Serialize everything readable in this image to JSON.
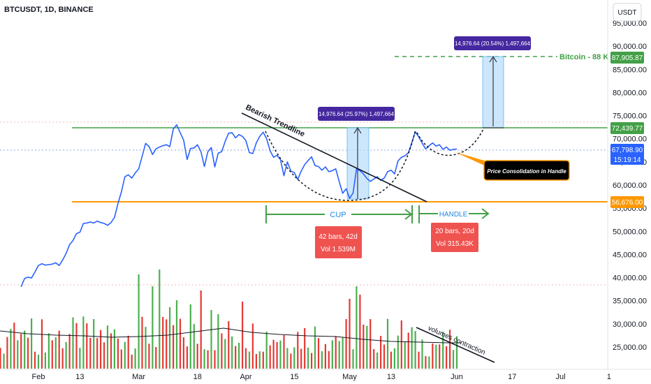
{
  "header": {
    "title": "BTCUSDT, 1D, BINANCE",
    "currency_button": "USDT"
  },
  "colors": {
    "price_line": "#2962ff",
    "resistance": "#43a047",
    "support": "#ff9800",
    "vol_up": "#4caf50",
    "vol_down": "#e53935",
    "target_badge": "#43a047",
    "current_badge": "#2962ff",
    "support_badge": "#ff9800",
    "measure_fill": "#bbdefb",
    "measure_label_bg": "#4527a0",
    "stat_box_bg": "#ef5350"
  },
  "chart_data": {
    "type": "line",
    "ylim": [
      24000,
      96500
    ],
    "y_ticks": [
      "95,000.00",
      "90,000.00",
      "85,000.00",
      "80,000.00",
      "75,000.00",
      "70,000.00",
      "65,000.00",
      "60,000.00",
      "55,000.00",
      "50,000.00",
      "45,000.00",
      "40,000.00",
      "35,000.00",
      "30,000.00",
      "25,000.00"
    ],
    "y_tick_values": [
      95000,
      90000,
      85000,
      80000,
      75000,
      70000,
      65000,
      60000,
      55000,
      50000,
      45000,
      40000,
      35000,
      30000,
      25000
    ],
    "x_ticks": [
      {
        "label": "Feb",
        "day": 0
      },
      {
        "label": "13",
        "day": 12
      },
      {
        "label": "Mar",
        "day": 29
      },
      {
        "label": "18",
        "day": 46
      },
      {
        "label": "Apr",
        "day": 60
      },
      {
        "label": "15",
        "day": 74
      },
      {
        "label": "May",
        "day": 90
      },
      {
        "label": "13",
        "day": 102
      },
      {
        "label": "Jun",
        "day": 121
      },
      {
        "label": "17",
        "day": 137
      },
      {
        "label": "Jul",
        "day": 151
      },
      {
        "label": "1",
        "day": 165
      }
    ],
    "price_series": [
      [
        -5,
        38000
      ],
      [
        -4,
        39800
      ],
      [
        -3,
        40100
      ],
      [
        -2,
        39900
      ],
      [
        -1,
        41200
      ],
      [
        0,
        42600
      ],
      [
        1,
        43000
      ],
      [
        2,
        42700
      ],
      [
        3,
        42800
      ],
      [
        4,
        42900
      ],
      [
        5,
        43200
      ],
      [
        6,
        42600
      ],
      [
        7,
        43800
      ],
      [
        8,
        45200
      ],
      [
        9,
        47100
      ],
      [
        10,
        48000
      ],
      [
        11,
        49500
      ],
      [
        12,
        49800
      ],
      [
        13,
        51700
      ],
      [
        14,
        51800
      ],
      [
        15,
        52000
      ],
      [
        16,
        51800
      ],
      [
        17,
        52200
      ],
      [
        18,
        51900
      ],
      [
        19,
        51700
      ],
      [
        20,
        51300
      ],
      [
        21,
        51900
      ],
      [
        22,
        53000
      ],
      [
        23,
        56000
      ],
      [
        24,
        58500
      ],
      [
        25,
        61800
      ],
      [
        26,
        62200
      ],
      [
        27,
        61500
      ],
      [
        28,
        62600
      ],
      [
        29,
        63500
      ],
      [
        30,
        66200
      ],
      [
        31,
        69000
      ],
      [
        32,
        68300
      ],
      [
        33,
        66600
      ],
      [
        34,
        67800
      ],
      [
        35,
        68200
      ],
      [
        36,
        68500
      ],
      [
        37,
        68700
      ],
      [
        38,
        68300
      ],
      [
        39,
        72100
      ],
      [
        40,
        73000
      ],
      [
        41,
        71300
      ],
      [
        42,
        69700
      ],
      [
        43,
        65500
      ],
      [
        44,
        67900
      ],
      [
        45,
        68000
      ],
      [
        46,
        68700
      ],
      [
        47,
        67200
      ],
      [
        48,
        64000
      ],
      [
        49,
        67200
      ],
      [
        50,
        68100
      ],
      [
        51,
        63900
      ],
      [
        52,
        66900
      ],
      [
        53,
        67200
      ],
      [
        54,
        69400
      ],
      [
        55,
        71200
      ],
      [
        56,
        71300
      ],
      [
        57,
        70200
      ],
      [
        58,
        70900
      ],
      [
        59,
        70500
      ],
      [
        60,
        69600
      ],
      [
        61,
        67000
      ],
      [
        62,
        66800
      ],
      [
        63,
        69100
      ],
      [
        64,
        70500
      ],
      [
        65,
        71400
      ],
      [
        66,
        70000
      ],
      [
        67,
        67400
      ],
      [
        68,
        66000
      ],
      [
        69,
        66400
      ],
      [
        70,
        65500
      ],
      [
        71,
        62000
      ],
      [
        72,
        65000
      ],
      [
        73,
        63000
      ],
      [
        74,
        62700
      ],
      [
        75,
        61200
      ],
      [
        76,
        63000
      ],
      [
        77,
        64400
      ],
      [
        78,
        65300
      ],
      [
        79,
        66100
      ],
      [
        80,
        64200
      ],
      [
        81,
        64000
      ],
      [
        82,
        63200
      ],
      [
        83,
        63900
      ],
      [
        84,
        62900
      ],
      [
        85,
        63100
      ],
      [
        86,
        63500
      ],
      [
        87,
        60700
      ],
      [
        88,
        58200
      ],
      [
        89,
        59200
      ],
      [
        90,
        57100
      ],
      [
        91,
        58300
      ],
      [
        92,
        63500
      ],
      [
        93,
        63100
      ],
      [
        94,
        62400
      ],
      [
        95,
        61400
      ],
      [
        96,
        60800
      ],
      [
        97,
        61300
      ],
      [
        98,
        61800
      ],
      [
        99,
        61000
      ],
      [
        100,
        61500
      ],
      [
        101,
        62900
      ],
      [
        102,
        63200
      ],
      [
        103,
        62400
      ],
      [
        104,
        65200
      ],
      [
        105,
        66000
      ],
      [
        106,
        66300
      ],
      [
        107,
        67000
      ],
      [
        108,
        69200
      ],
      [
        109,
        71500
      ],
      [
        110,
        70400
      ],
      [
        111,
        69000
      ],
      [
        112,
        67800
      ],
      [
        113,
        68500
      ],
      [
        114,
        69100
      ],
      [
        115,
        68400
      ],
      [
        116,
        68700
      ],
      [
        117,
        67700
      ],
      [
        118,
        68200
      ],
      [
        119,
        67500
      ],
      [
        120,
        67700
      ],
      [
        121,
        67800
      ]
    ],
    "volume_bars_up": [
      0,
      2,
      3,
      5,
      8,
      10,
      12,
      13,
      16,
      20,
      22,
      25,
      28,
      29,
      31,
      33,
      35,
      38,
      40,
      44,
      45,
      48,
      50,
      52,
      54,
      56,
      58,
      61,
      64,
      66,
      70,
      72,
      74,
      78,
      80,
      82,
      85,
      87,
      88,
      91,
      92,
      95,
      98,
      101,
      103,
      104,
      106,
      108,
      109,
      111,
      113,
      115,
      117,
      120,
      121
    ],
    "volume_bars_down": [
      1,
      4,
      6,
      7,
      9,
      11,
      14,
      15,
      17,
      18,
      19,
      21,
      23,
      24,
      26,
      27,
      30,
      32,
      34,
      36,
      37,
      39,
      41,
      42,
      43,
      46,
      47,
      49,
      51,
      53,
      55,
      57,
      59,
      60,
      62,
      63,
      65,
      67,
      68,
      69,
      71,
      73,
      75,
      76,
      77,
      79,
      81,
      83,
      84,
      86,
      89,
      90,
      93,
      94,
      96,
      97,
      99,
      100,
      102,
      105,
      107,
      110,
      112,
      114,
      116,
      118,
      119
    ],
    "resistance_level": 72439.77,
    "support_level": 56676.0,
    "current_price": 67798.9,
    "target_level": 87905.87,
    "levels": {
      "target": "87,905.87",
      "resistance": "72,439.77",
      "current": "67,798.90",
      "countdown": "15:19:14",
      "support": "56,676.00"
    }
  },
  "annotations": {
    "bearish_trendline": "Bearish Trendline",
    "bitcoin_target": "Bitcoin - 88 K",
    "cup_label": "CUP",
    "handle_label": "HANDLE",
    "cup_measure": "14,976.64 (25.97%) 1,497,664",
    "target_measure": "14,976.64 (20.54%) 1,497,664",
    "cup_stats_line1": "42 bars, 42d",
    "cup_stats_line2": "Vol 1.539M",
    "handle_stats_line1": "20 bars, 20d",
    "handle_stats_line2": "Vol 315.43K",
    "consolidation": "Price Consolidation in Handle",
    "volume_note": "volumes contraction"
  }
}
